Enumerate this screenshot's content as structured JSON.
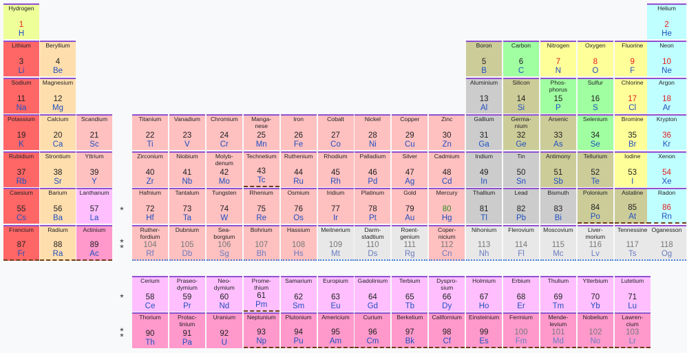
{
  "colors": {
    "alkali": "#ff6666",
    "alkaline_earth": "#ffdead",
    "lanthanide": "#ffbfff",
    "actinide": "#ff99cc",
    "transition": "#ffc0c0",
    "post_transition": "#cccccc",
    "metalloid": "#cccc99",
    "nonmetal": "#a0ffa0",
    "halogen": "#ffff99",
    "noble_gas": "#c0ffff",
    "unknown": "#e8e8e8",
    "hydrogen": "#eeff99"
  },
  "markers": [
    "*",
    "**",
    "*",
    "**"
  ],
  "elements": [
    {
      "n": 1,
      "name": "Hydrogen",
      "sym": "H",
      "row": 1,
      "col": 1,
      "cat": "hydrogen",
      "numc": "red"
    },
    {
      "n": 2,
      "name": "Helium",
      "sym": "He",
      "row": 1,
      "col": 18,
      "cat": "noble_gas",
      "numc": "red"
    },
    {
      "n": 3,
      "name": "Lithium",
      "sym": "Li",
      "row": 2,
      "col": 1,
      "cat": "alkali"
    },
    {
      "n": 4,
      "name": "Beryllium",
      "sym": "Be",
      "row": 2,
      "col": 2,
      "cat": "alkaline_earth"
    },
    {
      "n": 5,
      "name": "Boron",
      "sym": "B",
      "row": 2,
      "col": 13,
      "cat": "metalloid"
    },
    {
      "n": 6,
      "name": "Carbon",
      "sym": "C",
      "row": 2,
      "col": 14,
      "cat": "nonmetal"
    },
    {
      "n": 7,
      "name": "Nitrogen",
      "sym": "N",
      "row": 2,
      "col": 15,
      "cat": "halogen",
      "numc": "red"
    },
    {
      "n": 8,
      "name": "Oxygen",
      "sym": "O",
      "row": 2,
      "col": 16,
      "cat": "halogen",
      "numc": "red"
    },
    {
      "n": 9,
      "name": "Fluorine",
      "sym": "F",
      "row": 2,
      "col": 17,
      "cat": "halogen",
      "numc": "red"
    },
    {
      "n": 10,
      "name": "Neon",
      "sym": "Ne",
      "row": 2,
      "col": 18,
      "cat": "noble_gas",
      "numc": "red"
    },
    {
      "n": 11,
      "name": "Sodium",
      "sym": "Na",
      "row": 3,
      "col": 1,
      "cat": "alkali"
    },
    {
      "n": 12,
      "name": "Magnesium",
      "sym": "Mg",
      "row": 3,
      "col": 2,
      "cat": "alkaline_earth"
    },
    {
      "n": 13,
      "name": "Aluminium",
      "sym": "Al",
      "row": 3,
      "col": 13,
      "cat": "post_transition"
    },
    {
      "n": 14,
      "name": "Silicon",
      "sym": "Si",
      "row": 3,
      "col": 14,
      "cat": "metalloid"
    },
    {
      "n": 15,
      "name": "Phos-\nphorus",
      "sym": "P",
      "row": 3,
      "col": 15,
      "cat": "nonmetal"
    },
    {
      "n": 16,
      "name": "Sulfur",
      "sym": "S",
      "row": 3,
      "col": 16,
      "cat": "nonmetal"
    },
    {
      "n": 17,
      "name": "Chlorine",
      "sym": "Cl",
      "row": 3,
      "col": 17,
      "cat": "halogen",
      "numc": "red"
    },
    {
      "n": 18,
      "name": "Argon",
      "sym": "Ar",
      "row": 3,
      "col": 18,
      "cat": "noble_gas",
      "numc": "red"
    },
    {
      "n": 19,
      "name": "Potassium",
      "sym": "K",
      "row": 4,
      "col": 1,
      "cat": "alkali"
    },
    {
      "n": 20,
      "name": "Calcium",
      "sym": "Ca",
      "row": 4,
      "col": 2,
      "cat": "alkaline_earth"
    },
    {
      "n": 21,
      "name": "Scandium",
      "sym": "Sc",
      "row": 4,
      "col": 3,
      "cat": "transition"
    },
    {
      "n": 22,
      "name": "Titanium",
      "sym": "Ti",
      "row": 4,
      "col": 4,
      "cat": "transition"
    },
    {
      "n": 23,
      "name": "Vanadium",
      "sym": "V",
      "row": 4,
      "col": 5,
      "cat": "transition"
    },
    {
      "n": 24,
      "name": "Chromium",
      "sym": "Cr",
      "row": 4,
      "col": 6,
      "cat": "transition"
    },
    {
      "n": 25,
      "name": "Manga-\nnese",
      "sym": "Mn",
      "row": 4,
      "col": 7,
      "cat": "transition"
    },
    {
      "n": 26,
      "name": "Iron",
      "sym": "Fe",
      "row": 4,
      "col": 8,
      "cat": "transition"
    },
    {
      "n": 27,
      "name": "Cobalt",
      "sym": "Co",
      "row": 4,
      "col": 9,
      "cat": "transition"
    },
    {
      "n": 28,
      "name": "Nickel",
      "sym": "Ni",
      "row": 4,
      "col": 10,
      "cat": "transition"
    },
    {
      "n": 29,
      "name": "Copper",
      "sym": "Cu",
      "row": 4,
      "col": 11,
      "cat": "transition"
    },
    {
      "n": 30,
      "name": "Zinc",
      "sym": "Zn",
      "row": 4,
      "col": 12,
      "cat": "transition"
    },
    {
      "n": 31,
      "name": "Gallium",
      "sym": "Ga",
      "row": 4,
      "col": 13,
      "cat": "post_transition"
    },
    {
      "n": 32,
      "name": "Germa-\nnium",
      "sym": "Ge",
      "row": 4,
      "col": 14,
      "cat": "metalloid"
    },
    {
      "n": 33,
      "name": "Arsenic",
      "sym": "As",
      "row": 4,
      "col": 15,
      "cat": "metalloid"
    },
    {
      "n": 34,
      "name": "Selenium",
      "sym": "Se",
      "row": 4,
      "col": 16,
      "cat": "nonmetal"
    },
    {
      "n": 35,
      "name": "Bromine",
      "sym": "Br",
      "row": 4,
      "col": 17,
      "cat": "halogen"
    },
    {
      "n": 36,
      "name": "Krypton",
      "sym": "Kr",
      "row": 4,
      "col": 18,
      "cat": "noble_gas",
      "numc": "red"
    },
    {
      "n": 37,
      "name": "Rubidium",
      "sym": "Rb",
      "row": 5,
      "col": 1,
      "cat": "alkali"
    },
    {
      "n": 38,
      "name": "Strontium",
      "sym": "Sr",
      "row": 5,
      "col": 2,
      "cat": "alkaline_earth"
    },
    {
      "n": 39,
      "name": "Yttrium",
      "sym": "Y",
      "row": 5,
      "col": 3,
      "cat": "transition"
    },
    {
      "n": 40,
      "name": "Zirconium",
      "sym": "Zr",
      "row": 5,
      "col": 4,
      "cat": "transition"
    },
    {
      "n": 41,
      "name": "Niobium",
      "sym": "Nb",
      "row": 5,
      "col": 5,
      "cat": "transition"
    },
    {
      "n": 42,
      "name": "Molyb-\ndenum",
      "sym": "Mo",
      "row": 5,
      "col": 6,
      "cat": "transition"
    },
    {
      "n": 43,
      "name": "Technetium",
      "sym": "Tc",
      "row": 5,
      "col": 7,
      "cat": "transition",
      "border": "brown"
    },
    {
      "n": 44,
      "name": "Ruthenium",
      "sym": "Ru",
      "row": 5,
      "col": 8,
      "cat": "transition"
    },
    {
      "n": 45,
      "name": "Rhodium",
      "sym": "Rh",
      "row": 5,
      "col": 9,
      "cat": "transition"
    },
    {
      "n": 46,
      "name": "Palladium",
      "sym": "Pd",
      "row": 5,
      "col": 10,
      "cat": "transition"
    },
    {
      "n": 47,
      "name": "Silver",
      "sym": "Ag",
      "row": 5,
      "col": 11,
      "cat": "transition"
    },
    {
      "n": 48,
      "name": "Cadmium",
      "sym": "Cd",
      "row": 5,
      "col": 12,
      "cat": "transition"
    },
    {
      "n": 49,
      "name": "Indium",
      "sym": "In",
      "row": 5,
      "col": 13,
      "cat": "post_transition"
    },
    {
      "n": 50,
      "name": "Tin",
      "sym": "Sn",
      "row": 5,
      "col": 14,
      "cat": "post_transition"
    },
    {
      "n": 51,
      "name": "Antimony",
      "sym": "Sb",
      "row": 5,
      "col": 15,
      "cat": "metalloid"
    },
    {
      "n": 52,
      "name": "Tellurium",
      "sym": "Te",
      "row": 5,
      "col": 16,
      "cat": "metalloid"
    },
    {
      "n": 53,
      "name": "Iodine",
      "sym": "I",
      "row": 5,
      "col": 17,
      "cat": "halogen"
    },
    {
      "n": 54,
      "name": "Xenon",
      "sym": "Xe",
      "row": 5,
      "col": 18,
      "cat": "noble_gas",
      "numc": "red"
    },
    {
      "n": 55,
      "name": "Caesium",
      "sym": "Cs",
      "row": 6,
      "col": 1,
      "cat": "alkali"
    },
    {
      "n": 56,
      "name": "Barium",
      "sym": "Ba",
      "row": 6,
      "col": 2,
      "cat": "alkaline_earth"
    },
    {
      "n": 57,
      "name": "Lanthanum",
      "sym": "La",
      "row": 6,
      "col": 3,
      "cat": "lanthanide"
    },
    {
      "n": 72,
      "name": "Hafnium",
      "sym": "Hf",
      "row": 6,
      "col": 4,
      "cat": "transition"
    },
    {
      "n": 73,
      "name": "Tantalum",
      "sym": "Ta",
      "row": 6,
      "col": 5,
      "cat": "transition"
    },
    {
      "n": 74,
      "name": "Tungsten",
      "sym": "W",
      "row": 6,
      "col": 6,
      "cat": "transition"
    },
    {
      "n": 75,
      "name": "Rhenium",
      "sym": "Re",
      "row": 6,
      "col": 7,
      "cat": "transition"
    },
    {
      "n": 76,
      "name": "Osmium",
      "sym": "Os",
      "row": 6,
      "col": 8,
      "cat": "transition"
    },
    {
      "n": 77,
      "name": "Iridium",
      "sym": "Ir",
      "row": 6,
      "col": 9,
      "cat": "transition"
    },
    {
      "n": 78,
      "name": "Platinum",
      "sym": "Pt",
      "row": 6,
      "col": 10,
      "cat": "transition"
    },
    {
      "n": 79,
      "name": "Gold",
      "sym": "Au",
      "row": 6,
      "col": 11,
      "cat": "transition"
    },
    {
      "n": 80,
      "name": "Mercury",
      "sym": "Hg",
      "row": 6,
      "col": 12,
      "cat": "transition",
      "numc": "green"
    },
    {
      "n": 81,
      "name": "Thallium",
      "sym": "Tl",
      "row": 6,
      "col": 13,
      "cat": "post_transition"
    },
    {
      "n": 82,
      "name": "Lead",
      "sym": "Pb",
      "row": 6,
      "col": 14,
      "cat": "post_transition"
    },
    {
      "n": 83,
      "name": "Bismuth",
      "sym": "Bi",
      "row": 6,
      "col": 15,
      "cat": "post_transition"
    },
    {
      "n": 84,
      "name": "Polonium",
      "sym": "Po",
      "row": 6,
      "col": 16,
      "cat": "metalloid",
      "border": "brown"
    },
    {
      "n": 85,
      "name": "Astatine",
      "sym": "At",
      "row": 6,
      "col": 17,
      "cat": "metalloid",
      "border": "brown"
    },
    {
      "n": 86,
      "name": "Radon",
      "sym": "Rn",
      "row": 6,
      "col": 18,
      "cat": "noble_gas",
      "numc": "red",
      "border": "brown"
    },
    {
      "n": 87,
      "name": "Francium",
      "sym": "Fr",
      "row": 7,
      "col": 1,
      "cat": "alkali",
      "border": "brown"
    },
    {
      "n": 88,
      "name": "Radium",
      "sym": "Ra",
      "row": 7,
      "col": 2,
      "cat": "alkaline_earth",
      "border": "brown"
    },
    {
      "n": 89,
      "name": "Actinium",
      "sym": "Ac",
      "row": 7,
      "col": 3,
      "cat": "actinide",
      "border": "brown"
    },
    {
      "n": 104,
      "name": "Ruther-\nfordium",
      "sym": "Rf",
      "row": 7,
      "col": 4,
      "cat": "transition",
      "numc": "grey",
      "border": "blue"
    },
    {
      "n": 105,
      "name": "Dubnium",
      "sym": "Db",
      "row": 7,
      "col": 5,
      "cat": "transition",
      "numc": "grey",
      "border": "blue"
    },
    {
      "n": 106,
      "name": "Sea-\nborgium",
      "sym": "Sg",
      "row": 7,
      "col": 6,
      "cat": "transition",
      "numc": "grey",
      "border": "blue"
    },
    {
      "n": 107,
      "name": "Bohrium",
      "sym": "Bh",
      "row": 7,
      "col": 7,
      "cat": "transition",
      "numc": "grey",
      "border": "blue"
    },
    {
      "n": 108,
      "name": "Hassium",
      "sym": "Hs",
      "row": 7,
      "col": 8,
      "cat": "transition",
      "numc": "grey",
      "border": "blue"
    },
    {
      "n": 109,
      "name": "Meitnerium",
      "sym": "Mt",
      "row": 7,
      "col": 9,
      "cat": "unknown",
      "numc": "grey",
      "border": "blue"
    },
    {
      "n": 110,
      "name": "Darm-\nstadtium",
      "sym": "Ds",
      "row": 7,
      "col": 10,
      "cat": "unknown",
      "numc": "grey",
      "border": "blue"
    },
    {
      "n": 111,
      "name": "Roent-\ngenium",
      "sym": "Rg",
      "row": 7,
      "col": 11,
      "cat": "unknown",
      "numc": "grey",
      "border": "blue"
    },
    {
      "n": 112,
      "name": "Coper-\nnicium",
      "sym": "Cn",
      "row": 7,
      "col": 12,
      "cat": "transition",
      "numc": "grey",
      "border": "blue"
    },
    {
      "n": 113,
      "name": "Nihonium",
      "sym": "Nh",
      "row": 7,
      "col": 13,
      "cat": "unknown",
      "numc": "grey",
      "border": "blue"
    },
    {
      "n": 114,
      "name": "Flerovium",
      "sym": "Fl",
      "row": 7,
      "col": 14,
      "cat": "unknown",
      "numc": "grey",
      "border": "blue"
    },
    {
      "n": 115,
      "name": "Moscovium",
      "sym": "Mc",
      "row": 7,
      "col": 15,
      "cat": "unknown",
      "numc": "grey",
      "border": "blue"
    },
    {
      "n": 116,
      "name": "Liver-\nmorium",
      "sym": "Lv",
      "row": 7,
      "col": 16,
      "cat": "unknown",
      "numc": "grey",
      "border": "blue"
    },
    {
      "n": 117,
      "name": "Tennessine",
      "sym": "Ts",
      "row": 7,
      "col": 17,
      "cat": "unknown",
      "numc": "grey",
      "border": "blue"
    },
    {
      "n": 118,
      "name": "Oganesson",
      "sym": "Og",
      "row": 7,
      "col": 18,
      "cat": "unknown",
      "numc": "grey",
      "border": "blue"
    },
    {
      "n": 58,
      "name": "Cerium",
      "sym": "Ce",
      "row": 9,
      "col": 4,
      "cat": "lanthanide"
    },
    {
      "n": 59,
      "name": "Praseo-\ndymium",
      "sym": "Pr",
      "row": 9,
      "col": 5,
      "cat": "lanthanide"
    },
    {
      "n": 60,
      "name": "Neo-\ndymium",
      "sym": "Nd",
      "row": 9,
      "col": 6,
      "cat": "lanthanide"
    },
    {
      "n": 61,
      "name": "Prome-\nthium",
      "sym": "Pm",
      "row": 9,
      "col": 7,
      "cat": "lanthanide",
      "border": "brown"
    },
    {
      "n": 62,
      "name": "Samarium",
      "sym": "Sm",
      "row": 9,
      "col": 8,
      "cat": "lanthanide"
    },
    {
      "n": 63,
      "name": "Europium",
      "sym": "Eu",
      "row": 9,
      "col": 9,
      "cat": "lanthanide"
    },
    {
      "n": 64,
      "name": "Gadolinium",
      "sym": "Gd",
      "row": 9,
      "col": 10,
      "cat": "lanthanide"
    },
    {
      "n": 65,
      "name": "Terbium",
      "sym": "Tb",
      "row": 9,
      "col": 11,
      "cat": "lanthanide"
    },
    {
      "n": 66,
      "name": "Dyspro-\nsium",
      "sym": "Dy",
      "row": 9,
      "col": 12,
      "cat": "lanthanide"
    },
    {
      "n": 67,
      "name": "Holmium",
      "sym": "Ho",
      "row": 9,
      "col": 13,
      "cat": "lanthanide"
    },
    {
      "n": 68,
      "name": "Erbium",
      "sym": "Er",
      "row": 9,
      "col": 14,
      "cat": "lanthanide"
    },
    {
      "n": 69,
      "name": "Thulium",
      "sym": "Tm",
      "row": 9,
      "col": 15,
      "cat": "lanthanide"
    },
    {
      "n": 70,
      "name": "Ytterbium",
      "sym": "Yb",
      "row": 9,
      "col": 16,
      "cat": "lanthanide"
    },
    {
      "n": 71,
      "name": "Lutetium",
      "sym": "Lu",
      "row": 9,
      "col": 17,
      "cat": "lanthanide"
    },
    {
      "n": 90,
      "name": "Thorium",
      "sym": "Th",
      "row": 10,
      "col": 4,
      "cat": "actinide"
    },
    {
      "n": 91,
      "name": "Protac-\ntinium",
      "sym": "Pa",
      "row": 10,
      "col": 5,
      "cat": "actinide"
    },
    {
      "n": 92,
      "name": "Uranium",
      "sym": "U",
      "row": 10,
      "col": 6,
      "cat": "actinide"
    },
    {
      "n": 93,
      "name": "Neptunium",
      "sym": "Np",
      "row": 10,
      "col": 7,
      "cat": "actinide",
      "border": "brown"
    },
    {
      "n": 94,
      "name": "Plutonium",
      "sym": "Pu",
      "row": 10,
      "col": 8,
      "cat": "actinide",
      "border": "brown"
    },
    {
      "n": 95,
      "name": "Americium",
      "sym": "Am",
      "row": 10,
      "col": 9,
      "cat": "actinide",
      "border": "brown"
    },
    {
      "n": 96,
      "name": "Curium",
      "sym": "Cm",
      "row": 10,
      "col": 10,
      "cat": "actinide",
      "border": "brown"
    },
    {
      "n": 97,
      "name": "Berkelium",
      "sym": "Bk",
      "row": 10,
      "col": 11,
      "cat": "actinide",
      "border": "brown"
    },
    {
      "n": 98,
      "name": "Californium",
      "sym": "Cf",
      "row": 10,
      "col": 12,
      "cat": "actinide",
      "border": "brown"
    },
    {
      "n": 99,
      "name": "Einsteinium",
      "sym": "Es",
      "row": 10,
      "col": 13,
      "cat": "actinide",
      "border": "brown"
    },
    {
      "n": 100,
      "name": "Fermium",
      "sym": "Fm",
      "row": 10,
      "col": 14,
      "cat": "actinide",
      "numc": "grey",
      "border": "brown"
    },
    {
      "n": 101,
      "name": "Mende-\nlevium",
      "sym": "Md",
      "row": 10,
      "col": 15,
      "cat": "actinide",
      "numc": "grey",
      "border": "brown"
    },
    {
      "n": 102,
      "name": "Nobelium",
      "sym": "No",
      "row": 10,
      "col": 16,
      "cat": "actinide",
      "numc": "grey",
      "border": "brown"
    },
    {
      "n": 103,
      "name": "Lawren-\ncium",
      "sym": "Lr",
      "row": 10,
      "col": 17,
      "cat": "actinide",
      "numc": "grey",
      "border": "brown"
    }
  ]
}
